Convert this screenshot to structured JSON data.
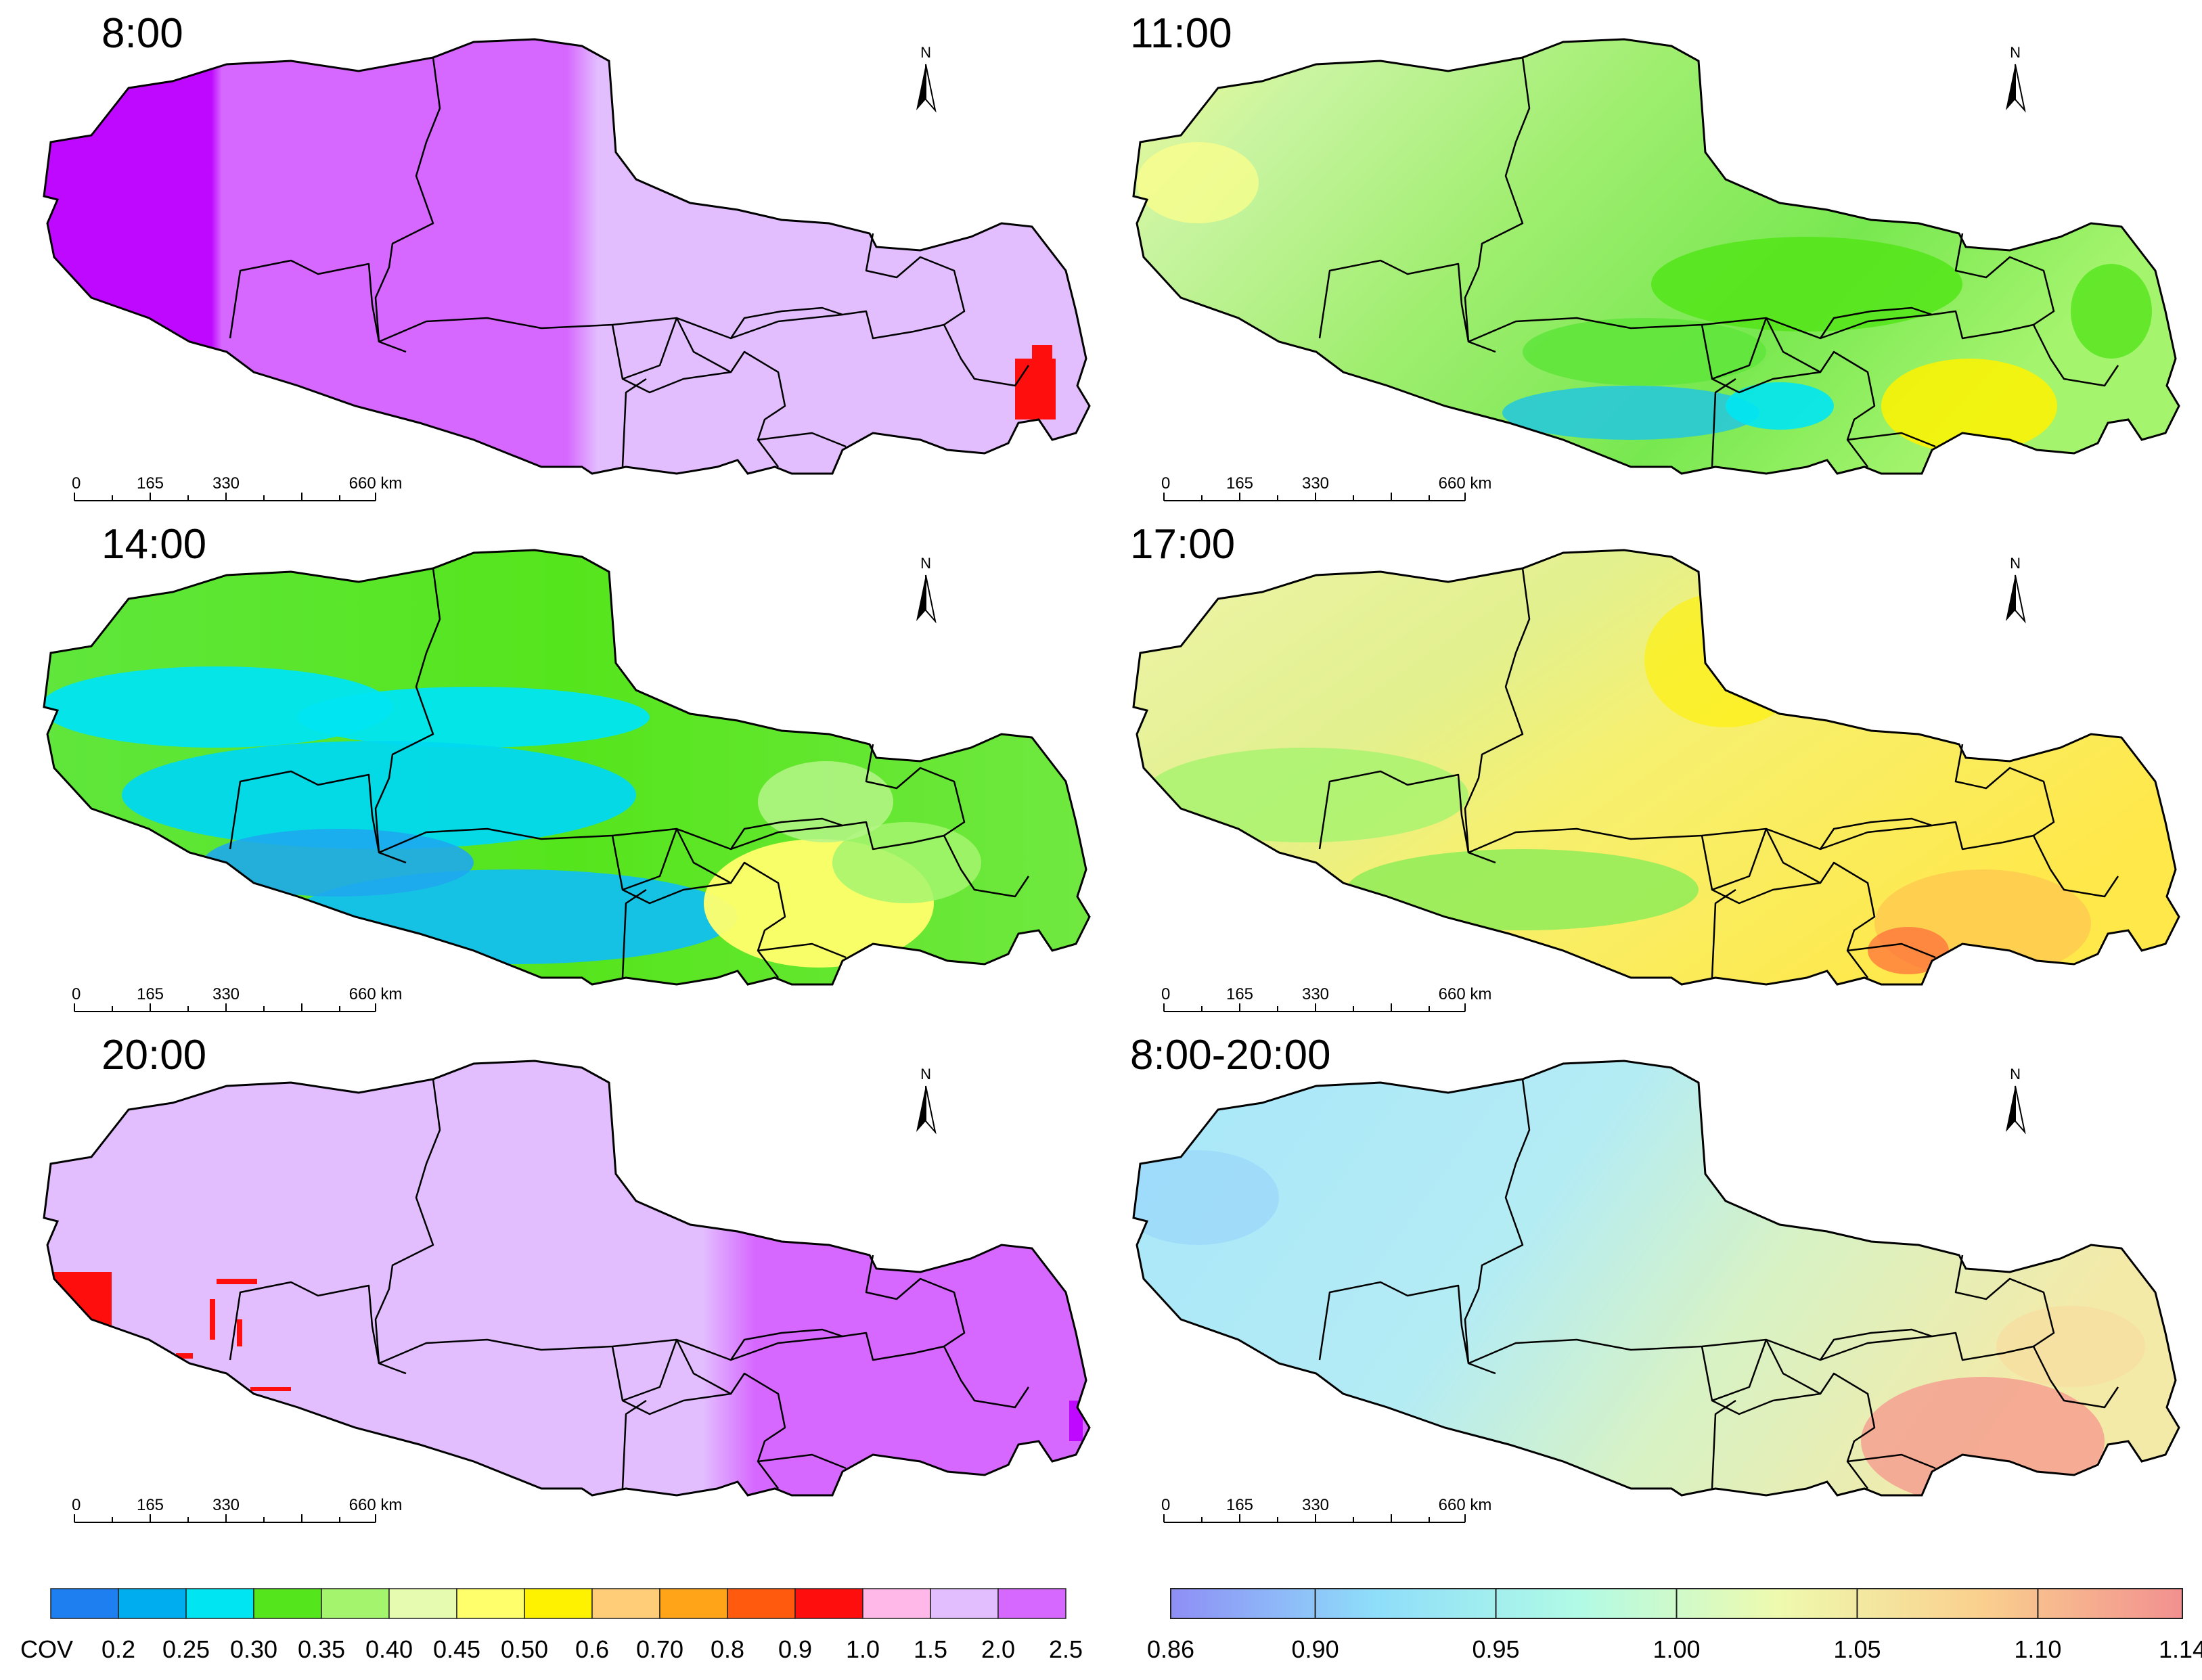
{
  "panels": [
    {
      "title": "8:00"
    },
    {
      "title": "11:00"
    },
    {
      "title": "14:00"
    },
    {
      "title": "17:00"
    },
    {
      "title": "20:00"
    },
    {
      "title": "8:00-20:00"
    }
  ],
  "scalebar": {
    "labels": [
      "0",
      "165",
      "330",
      "660 km"
    ]
  },
  "north_label": "N",
  "legend_left": {
    "title": "COV",
    "labels": [
      "0.2",
      "0.25",
      "0.30",
      "0.35",
      "0.40",
      "0.45",
      "0.50",
      "0.6",
      "0.70",
      "0.8",
      "0.9",
      "1.0",
      "1.5",
      "2.0",
      "2.5"
    ],
    "colors": [
      "#1E7FF0",
      "#00AEEF",
      "#00E5F2",
      "#55E51C",
      "#A5F46E",
      "#E6FAB0",
      "#FFFF6B",
      "#FFF200",
      "#FFCD78",
      "#FFA319",
      "#FF5A0D",
      "#FF0E0E",
      "#FFB8E8",
      "#E3BEFF",
      "#D668FF"
    ]
  },
  "legend_right": {
    "labels": [
      "0.86",
      "0.90",
      "0.95",
      "1.00",
      "1.05",
      "1.10",
      "1.14"
    ],
    "colors": [
      "#8E8EF5",
      "#8EDDFA",
      "#B0FAE6",
      "#EEFAAE",
      "#FAD08E",
      "#F29090"
    ]
  }
}
